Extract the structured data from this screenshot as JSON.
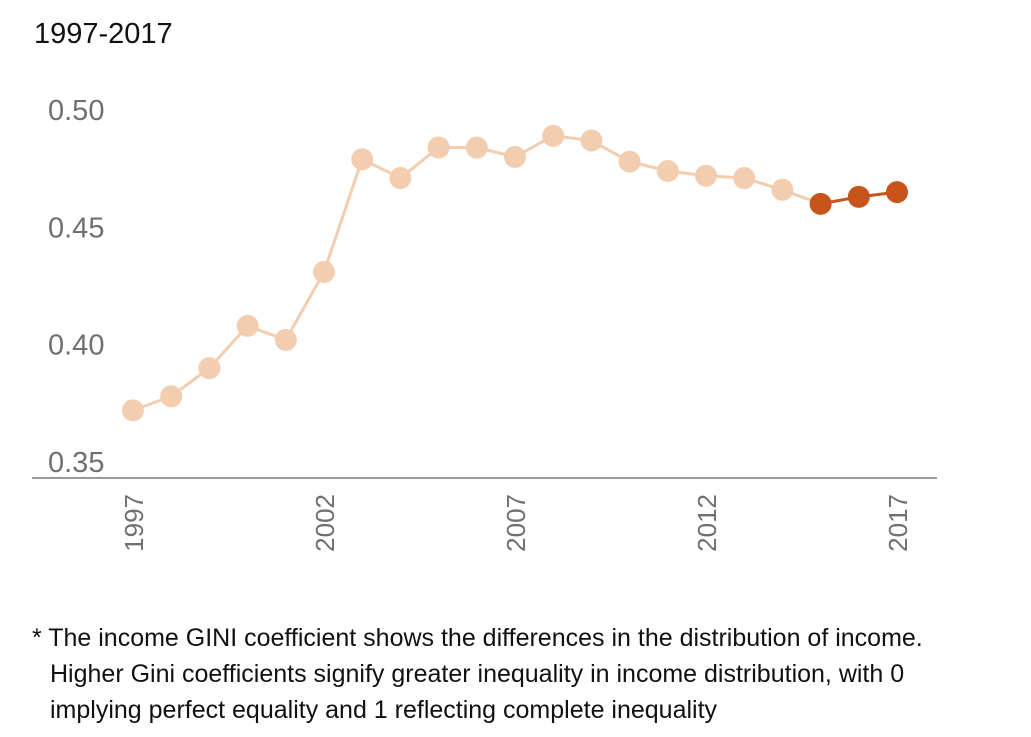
{
  "chart_data": {
    "type": "line",
    "title": "1997-2017",
    "x": [
      1997,
      1998,
      1999,
      2000,
      2001,
      2002,
      2003,
      2004,
      2005,
      2006,
      2007,
      2008,
      2009,
      2010,
      2011,
      2012,
      2013,
      2014,
      2015,
      2016,
      2017
    ],
    "series": [
      {
        "values": [
          0.372,
          0.378,
          0.39,
          0.408,
          0.402,
          0.431,
          0.479,
          0.471,
          0.484,
          0.484,
          0.48,
          0.489,
          0.487,
          0.478,
          0.474,
          0.472,
          0.471,
          0.466,
          0.46,
          0.463,
          0.465
        ],
        "highlight_from_index": 18
      }
    ],
    "xticks": [
      "1997",
      "2002",
      "2007",
      "2012",
      "2017"
    ],
    "yticks": [
      "0.35",
      "0.40",
      "0.45",
      "0.50"
    ],
    "ylim": [
      0.35,
      0.5
    ],
    "xlim": [
      1997,
      2017
    ],
    "grid": false,
    "colors": {
      "line_light": "#f2cdb0",
      "point_light": "#f2cdb0",
      "highlight": "#c6541b",
      "axis": "#9a9a9a"
    }
  },
  "footnote": {
    "line1": "* The income GINI coefficient shows the differences in the distribution of income.",
    "line2": "Higher Gini coefficients signify greater inequality in income distribution, with 0",
    "line3": "implying perfect equality and 1 reflecting complete inequality"
  }
}
